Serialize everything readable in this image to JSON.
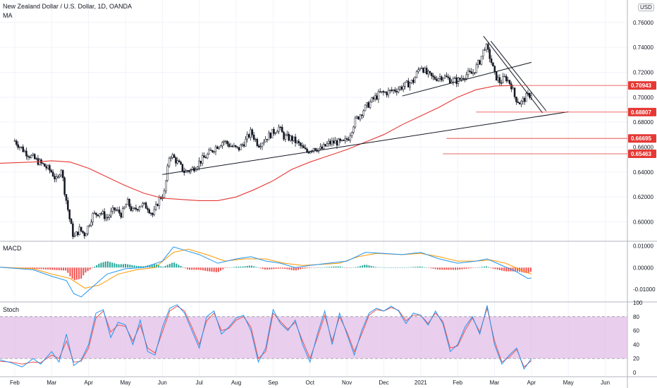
{
  "header": {
    "title": "New Zealand Dollar / U.S. Dollar, 1D, OANDA",
    "indicator": "MA",
    "currency": "USD"
  },
  "macd_pane": {
    "label": "MACD"
  },
  "stoch_pane": {
    "label": "Stoch"
  },
  "colors": {
    "up": "#26a69a",
    "down": "#ef5350",
    "ma": "#e53935",
    "macd_line": "#2196f3",
    "signal_line": "#ff9800",
    "stoch_k": "#2196f3",
    "stoch_d": "#ef5350",
    "stoch_band": "#e1bee7"
  },
  "chart_data": [
    {
      "type": "candlestick",
      "title": "New Zealand Dollar / U.S. Dollar, 1D, OANDA",
      "ylim": [
        0.585,
        0.778
      ],
      "y_ticks": [
        "0.76000",
        "0.74000",
        "0.72000",
        "0.70000",
        "0.68000",
        "0.66000",
        "0.64000",
        "0.62000",
        "0.60000"
      ],
      "y_tick_values": [
        0.76,
        0.74,
        0.72,
        0.7,
        0.68,
        0.66,
        0.64,
        0.62,
        0.6
      ],
      "x_labels": [
        "Feb",
        "Mar",
        "Apr",
        "May",
        "Jun",
        "Jul",
        "Aug",
        "Sep",
        "Oct",
        "Nov",
        "Dec",
        "2021",
        "Feb",
        "Mar",
        "Apr",
        "May",
        "Jun"
      ],
      "x_label_months": [
        0,
        1,
        2,
        3,
        4,
        5,
        6,
        7,
        8,
        9,
        10,
        11,
        12,
        13,
        14,
        15,
        16
      ],
      "x_range_months": [
        -0.4,
        16.6
      ],
      "close_path": [
        [
          0.0,
          0.665
        ],
        [
          0.25,
          0.657
        ],
        [
          0.55,
          0.65
        ],
        [
          0.8,
          0.645
        ],
        [
          1.0,
          0.64
        ],
        [
          1.15,
          0.632
        ],
        [
          1.25,
          0.645
        ],
        [
          1.35,
          0.625
        ],
        [
          1.5,
          0.6
        ],
        [
          1.6,
          0.587
        ],
        [
          1.75,
          0.594
        ],
        [
          1.9,
          0.59
        ],
        [
          2.1,
          0.605
        ],
        [
          2.3,
          0.608
        ],
        [
          2.5,
          0.603
        ],
        [
          2.7,
          0.61
        ],
        [
          2.9,
          0.606
        ],
        [
          3.05,
          0.616
        ],
        [
          3.2,
          0.608
        ],
        [
          3.4,
          0.614
        ],
        [
          3.6,
          0.612
        ],
        [
          3.75,
          0.605
        ],
        [
          3.9,
          0.618
        ],
        [
          4.05,
          0.623
        ],
        [
          4.2,
          0.655
        ],
        [
          4.4,
          0.648
        ],
        [
          4.6,
          0.64
        ],
        [
          4.8,
          0.642
        ],
        [
          5.0,
          0.648
        ],
        [
          5.2,
          0.653
        ],
        [
          5.4,
          0.659
        ],
        [
          5.65,
          0.665
        ],
        [
          5.85,
          0.661
        ],
        [
          6.05,
          0.658
        ],
        [
          6.25,
          0.665
        ],
        [
          6.4,
          0.672
        ],
        [
          6.6,
          0.662
        ],
        [
          6.8,
          0.667
        ],
        [
          7.0,
          0.672
        ],
        [
          7.15,
          0.676
        ],
        [
          7.3,
          0.668
        ],
        [
          7.5,
          0.667
        ],
        [
          7.7,
          0.662
        ],
        [
          7.9,
          0.656
        ],
        [
          8.1,
          0.66
        ],
        [
          8.3,
          0.658
        ],
        [
          8.5,
          0.663
        ],
        [
          8.7,
          0.664
        ],
        [
          8.9,
          0.663
        ],
        [
          9.05,
          0.668
        ],
        [
          9.2,
          0.68
        ],
        [
          9.45,
          0.69
        ],
        [
          9.7,
          0.698
        ],
        [
          9.9,
          0.703
        ],
        [
          10.1,
          0.704
        ],
        [
          10.4,
          0.707
        ],
        [
          10.6,
          0.71
        ],
        [
          10.8,
          0.713
        ],
        [
          11.0,
          0.726
        ],
        [
          11.15,
          0.719
        ],
        [
          11.35,
          0.715
        ],
        [
          11.6,
          0.717
        ],
        [
          11.8,
          0.714
        ],
        [
          12.0,
          0.713
        ],
        [
          12.2,
          0.718
        ],
        [
          12.4,
          0.719
        ],
        [
          12.6,
          0.729
        ],
        [
          12.75,
          0.742
        ],
        [
          12.9,
          0.73
        ],
        [
          13.0,
          0.718
        ],
        [
          13.15,
          0.712
        ],
        [
          13.3,
          0.716
        ],
        [
          13.45,
          0.71
        ],
        [
          13.55,
          0.7
        ],
        [
          13.7,
          0.695
        ],
        [
          13.85,
          0.7
        ],
        [
          14.0,
          0.703
        ]
      ],
      "ma_path": [
        [
          -0.4,
          0.647
        ],
        [
          0.5,
          0.648
        ],
        [
          1.0,
          0.649
        ],
        [
          1.5,
          0.648
        ],
        [
          2.0,
          0.643
        ],
        [
          2.5,
          0.636
        ],
        [
          3.0,
          0.629
        ],
        [
          3.5,
          0.623
        ],
        [
          4.0,
          0.619
        ],
        [
          4.5,
          0.618
        ],
        [
          5.0,
          0.617
        ],
        [
          5.5,
          0.617
        ],
        [
          6.0,
          0.62
        ],
        [
          6.5,
          0.626
        ],
        [
          7.0,
          0.633
        ],
        [
          7.5,
          0.642
        ],
        [
          8.0,
          0.648
        ],
        [
          8.5,
          0.653
        ],
        [
          9.0,
          0.658
        ],
        [
          9.5,
          0.664
        ],
        [
          10.0,
          0.67
        ],
        [
          10.5,
          0.678
        ],
        [
          11.0,
          0.685
        ],
        [
          11.5,
          0.692
        ],
        [
          12.0,
          0.7
        ],
        [
          12.5,
          0.706
        ],
        [
          13.0,
          0.709
        ],
        [
          13.5,
          0.7094
        ]
      ],
      "trendlines": [
        {
          "from": [
            4.0,
            0.638
          ],
          "to": [
            15.0,
            0.6883
          ]
        },
        {
          "from": [
            10.5,
            0.701
          ],
          "to": [
            14.0,
            0.728
          ]
        },
        {
          "from": [
            12.7,
            0.749
          ],
          "to": [
            14.3,
            0.6875
          ]
        },
        {
          "from": [
            12.9,
            0.745
          ],
          "to": [
            14.4,
            0.689
          ]
        }
      ],
      "price_levels": [
        {
          "value": 0.70943,
          "label": "0.70943",
          "from_month": 13.5
        },
        {
          "value": 0.68807,
          "label": "0.68807",
          "from_month": 12.5
        },
        {
          "value": 0.66695,
          "label": "0.66695",
          "from_month": 11.7
        },
        {
          "value": 0.65463,
          "label": "0.65463",
          "from_month": 11.6
        }
      ]
    },
    {
      "type": "line",
      "title": "MACD",
      "ylim": [
        -0.0155,
        0.0118
      ],
      "y_ticks": [
        "0.01000",
        "0.00000",
        "-0.01000"
      ],
      "y_tick_values": [
        0.01,
        0.0,
        -0.01
      ],
      "macd_path": [
        [
          -0.4,
          0.0002
        ],
        [
          0.5,
          -0.001
        ],
        [
          1.0,
          -0.004
        ],
        [
          1.4,
          -0.006
        ],
        [
          1.6,
          -0.012
        ],
        [
          1.8,
          -0.0135
        ],
        [
          2.1,
          -0.009
        ],
        [
          2.5,
          -0.003
        ],
        [
          3.0,
          -0.0005
        ],
        [
          3.5,
          0.0
        ],
        [
          4.0,
          0.003
        ],
        [
          4.3,
          0.0095
        ],
        [
          4.6,
          0.008
        ],
        [
          5.0,
          0.006
        ],
        [
          5.5,
          0.002
        ],
        [
          6.0,
          0.004
        ],
        [
          6.4,
          0.005
        ],
        [
          6.8,
          0.003
        ],
        [
          7.2,
          0.002
        ],
        [
          7.6,
          0.0
        ],
        [
          8.0,
          0.001
        ],
        [
          8.5,
          0.002
        ],
        [
          9.0,
          0.003
        ],
        [
          9.5,
          0.007
        ],
        [
          10.0,
          0.0065
        ],
        [
          10.5,
          0.006
        ],
        [
          11.0,
          0.007
        ],
        [
          11.5,
          0.004
        ],
        [
          12.0,
          0.002
        ],
        [
          12.5,
          0.003
        ],
        [
          12.8,
          0.004
        ],
        [
          13.2,
          0.001
        ],
        [
          13.6,
          -0.002
        ],
        [
          13.9,
          -0.005
        ],
        [
          14.0,
          -0.0048
        ]
      ],
      "signal_path": [
        [
          -0.4,
          0.0002
        ],
        [
          0.5,
          -0.0005
        ],
        [
          1.0,
          -0.003
        ],
        [
          1.5,
          -0.005
        ],
        [
          1.9,
          -0.0095
        ],
        [
          2.3,
          -0.008
        ],
        [
          2.8,
          -0.003
        ],
        [
          3.3,
          -0.001
        ],
        [
          3.8,
          0.0
        ],
        [
          4.3,
          0.007
        ],
        [
          4.7,
          0.0085
        ],
        [
          5.2,
          0.006
        ],
        [
          5.7,
          0.003
        ],
        [
          6.2,
          0.004
        ],
        [
          6.8,
          0.004
        ],
        [
          7.3,
          0.002
        ],
        [
          7.8,
          0.001
        ],
        [
          8.3,
          0.0015
        ],
        [
          8.8,
          0.002
        ],
        [
          9.3,
          0.005
        ],
        [
          9.8,
          0.0065
        ],
        [
          10.5,
          0.006
        ],
        [
          11.0,
          0.0065
        ],
        [
          11.5,
          0.005
        ],
        [
          12.0,
          0.003
        ],
        [
          12.5,
          0.003
        ],
        [
          12.9,
          0.0035
        ],
        [
          13.3,
          0.002
        ],
        [
          13.7,
          -0.001
        ],
        [
          14.0,
          -0.003
        ]
      ]
    },
    {
      "type": "line",
      "title": "Stoch",
      "ylim": [
        -5,
        100
      ],
      "y_ticks": [
        "100",
        "80",
        "60",
        "40",
        "20",
        "0"
      ],
      "y_tick_values": [
        100,
        80,
        60,
        40,
        20,
        0
      ],
      "band": [
        20,
        80
      ],
      "k_path": [
        [
          -0.4,
          18
        ],
        [
          -0.1,
          14
        ],
        [
          0.2,
          8
        ],
        [
          0.5,
          20
        ],
        [
          0.7,
          12
        ],
        [
          1.0,
          30
        ],
        [
          1.2,
          15
        ],
        [
          1.4,
          55
        ],
        [
          1.6,
          10
        ],
        [
          1.8,
          18
        ],
        [
          2.0,
          40
        ],
        [
          2.2,
          85
        ],
        [
          2.4,
          90
        ],
        [
          2.6,
          50
        ],
        [
          2.8,
          72
        ],
        [
          3.0,
          68
        ],
        [
          3.2,
          40
        ],
        [
          3.4,
          75
        ],
        [
          3.6,
          30
        ],
        [
          3.8,
          25
        ],
        [
          4.0,
          65
        ],
        [
          4.2,
          92
        ],
        [
          4.4,
          97
        ],
        [
          4.6,
          85
        ],
        [
          4.8,
          60
        ],
        [
          5.0,
          35
        ],
        [
          5.2,
          80
        ],
        [
          5.4,
          88
        ],
        [
          5.6,
          55
        ],
        [
          5.8,
          65
        ],
        [
          6.0,
          78
        ],
        [
          6.2,
          82
        ],
        [
          6.4,
          60
        ],
        [
          6.6,
          15
        ],
        [
          6.8,
          35
        ],
        [
          7.0,
          90
        ],
        [
          7.2,
          70
        ],
        [
          7.4,
          60
        ],
        [
          7.6,
          75
        ],
        [
          7.8,
          40
        ],
        [
          8.0,
          15
        ],
        [
          8.2,
          55
        ],
        [
          8.4,
          88
        ],
        [
          8.6,
          40
        ],
        [
          8.8,
          85
        ],
        [
          9.0,
          55
        ],
        [
          9.2,
          25
        ],
        [
          9.4,
          60
        ],
        [
          9.6,
          85
        ],
        [
          9.8,
          92
        ],
        [
          10.0,
          88
        ],
        [
          10.2,
          95
        ],
        [
          10.4,
          88
        ],
        [
          10.6,
          70
        ],
        [
          10.8,
          85
        ],
        [
          11.0,
          82
        ],
        [
          11.2,
          68
        ],
        [
          11.4,
          88
        ],
        [
          11.6,
          70
        ],
        [
          11.8,
          30
        ],
        [
          12.0,
          40
        ],
        [
          12.2,
          65
        ],
        [
          12.4,
          80
        ],
        [
          12.6,
          55
        ],
        [
          12.8,
          96
        ],
        [
          13.0,
          40
        ],
        [
          13.2,
          12
        ],
        [
          13.4,
          25
        ],
        [
          13.6,
          35
        ],
        [
          13.8,
          5
        ],
        [
          14.0,
          20
        ]
      ],
      "d_path": [
        [
          -0.4,
          16
        ],
        [
          -0.1,
          15
        ],
        [
          0.2,
          12
        ],
        [
          0.5,
          15
        ],
        [
          0.7,
          14
        ],
        [
          1.0,
          25
        ],
        [
          1.2,
          20
        ],
        [
          1.4,
          45
        ],
        [
          1.6,
          15
        ],
        [
          1.8,
          16
        ],
        [
          2.0,
          35
        ],
        [
          2.2,
          78
        ],
        [
          2.4,
          88
        ],
        [
          2.6,
          58
        ],
        [
          2.8,
          68
        ],
        [
          3.0,
          66
        ],
        [
          3.2,
          45
        ],
        [
          3.4,
          68
        ],
        [
          3.6,
          35
        ],
        [
          3.8,
          28
        ],
        [
          4.0,
          58
        ],
        [
          4.2,
          88
        ],
        [
          4.4,
          95
        ],
        [
          4.6,
          88
        ],
        [
          4.8,
          65
        ],
        [
          5.0,
          40
        ],
        [
          5.2,
          74
        ],
        [
          5.4,
          85
        ],
        [
          5.6,
          60
        ],
        [
          5.8,
          63
        ],
        [
          6.0,
          75
        ],
        [
          6.2,
          80
        ],
        [
          6.4,
          65
        ],
        [
          6.6,
          20
        ],
        [
          6.8,
          30
        ],
        [
          7.0,
          85
        ],
        [
          7.2,
          73
        ],
        [
          7.4,
          62
        ],
        [
          7.6,
          72
        ],
        [
          7.8,
          45
        ],
        [
          8.0,
          20
        ],
        [
          8.2,
          50
        ],
        [
          8.4,
          82
        ],
        [
          8.6,
          45
        ],
        [
          8.8,
          80
        ],
        [
          9.0,
          58
        ],
        [
          9.2,
          30
        ],
        [
          9.4,
          55
        ],
        [
          9.6,
          82
        ],
        [
          9.8,
          90
        ],
        [
          10.0,
          88
        ],
        [
          10.2,
          93
        ],
        [
          10.4,
          89
        ],
        [
          10.6,
          74
        ],
        [
          10.8,
          82
        ],
        [
          11.0,
          82
        ],
        [
          11.2,
          70
        ],
        [
          11.4,
          85
        ],
        [
          11.6,
          73
        ],
        [
          11.8,
          35
        ],
        [
          12.0,
          38
        ],
        [
          12.2,
          60
        ],
        [
          12.4,
          78
        ],
        [
          12.6,
          58
        ],
        [
          12.8,
          92
        ],
        [
          13.0,
          45
        ],
        [
          13.2,
          15
        ],
        [
          13.4,
          22
        ],
        [
          13.6,
          33
        ],
        [
          13.8,
          8
        ],
        [
          14.0,
          17
        ]
      ]
    }
  ]
}
